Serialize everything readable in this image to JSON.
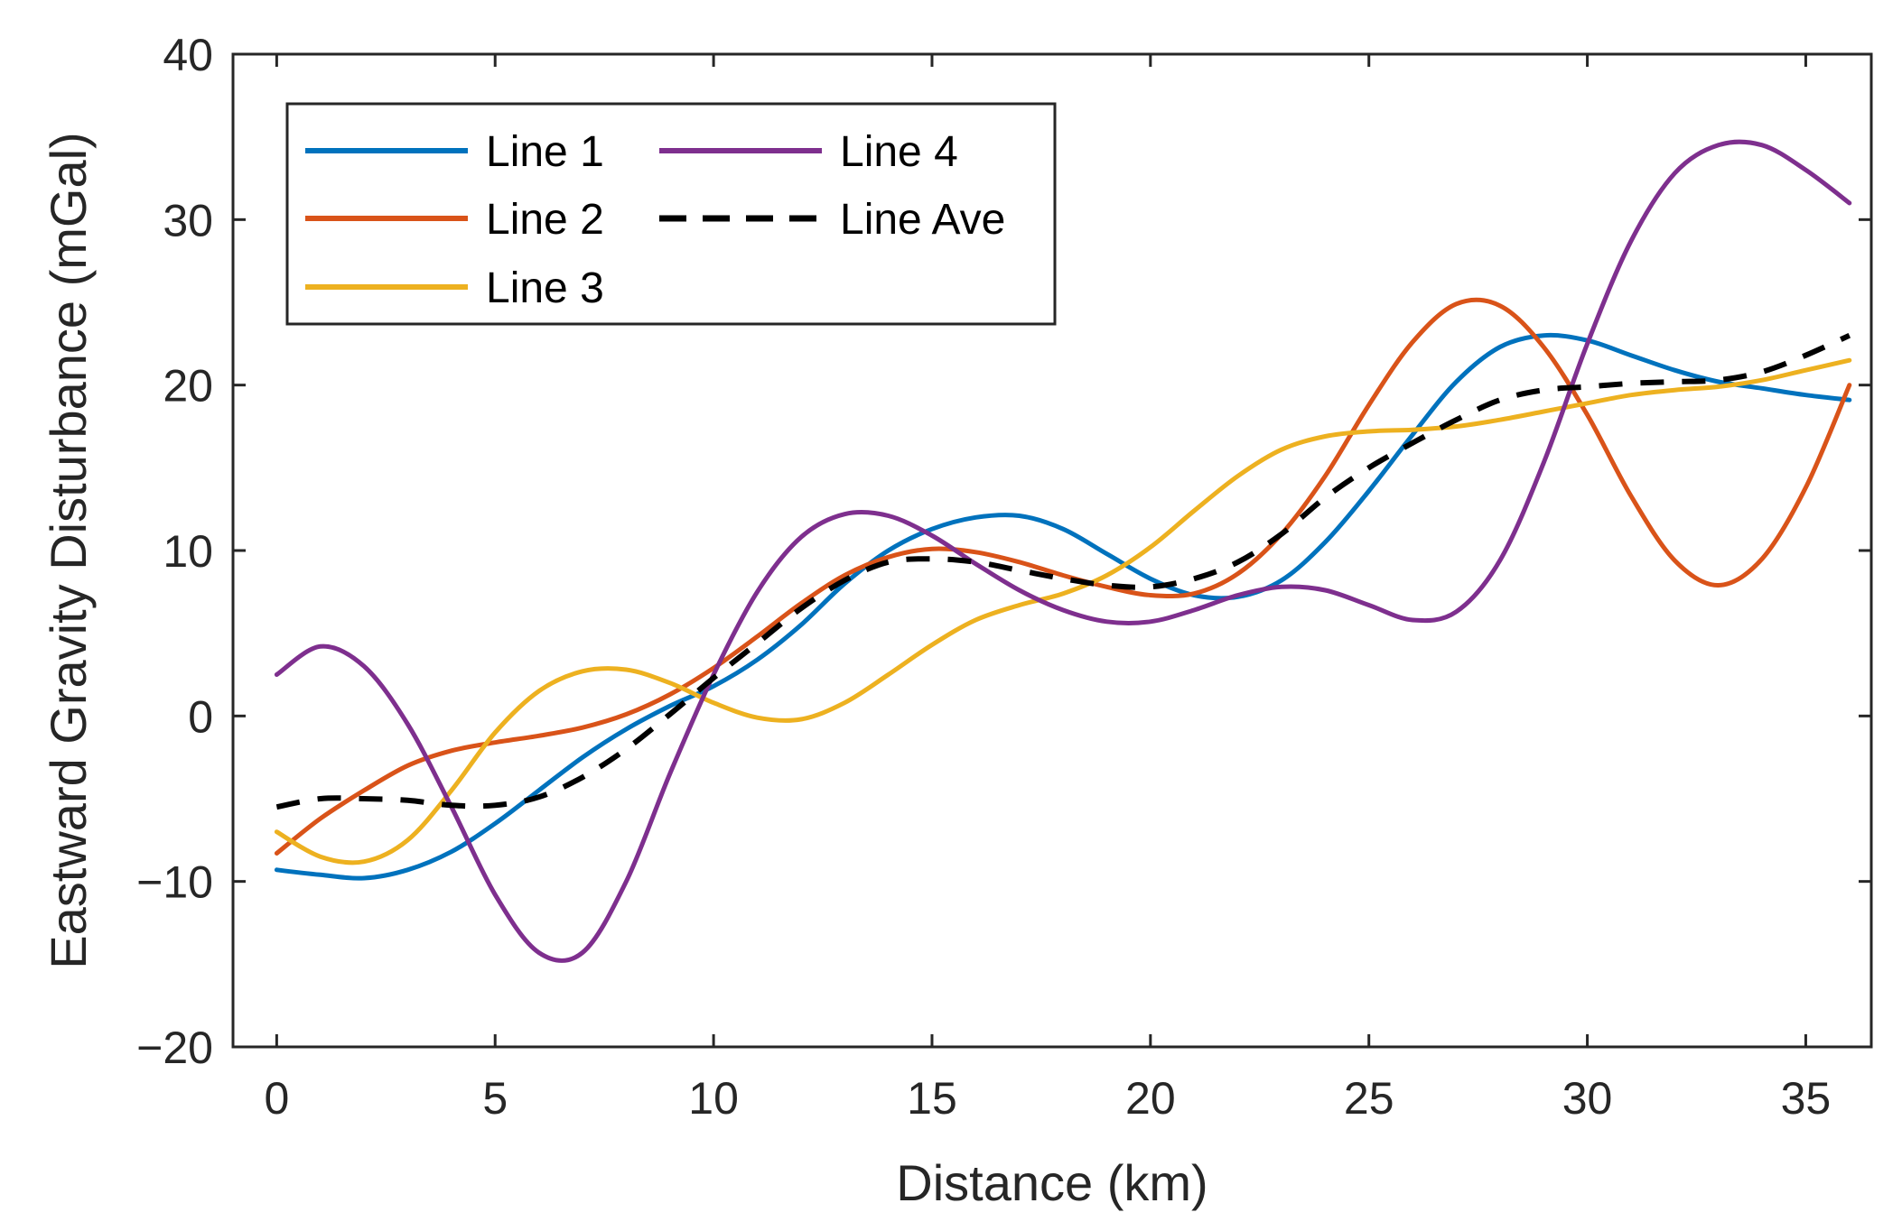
{
  "chart_data": {
    "type": "line",
    "title": "",
    "xlabel": "Distance (km)",
    "ylabel": "Eastward Gravity Disturbance (mGal)",
    "xlim": [
      -1,
      36.5
    ],
    "ylim": [
      -20,
      40
    ],
    "xticks": [
      0,
      5,
      10,
      15,
      20,
      25,
      30,
      35
    ],
    "yticks": [
      -20,
      -10,
      0,
      10,
      20,
      30,
      40
    ],
    "xtick_labels": [
      "0",
      "5",
      "10",
      "15",
      "20",
      "25",
      "30",
      "35"
    ],
    "ytick_labels": [
      "−20",
      "−10",
      "0",
      "10",
      "20",
      "30",
      "40"
    ],
    "grid": false,
    "legend_position": "top-left",
    "series": [
      {
        "name": "Line 1",
        "color": "#0072BD",
        "dash": "solid",
        "x": [
          0,
          1,
          2,
          3,
          4,
          5,
          6,
          7,
          8,
          9,
          10,
          11,
          12,
          13,
          14,
          15,
          16,
          17,
          18,
          19,
          20,
          21,
          22,
          23,
          24,
          25,
          26,
          27,
          28,
          29,
          30,
          31,
          32,
          33,
          34,
          35,
          36
        ],
        "y": [
          -9.3,
          -9.6,
          -9.8,
          -9.3,
          -8.2,
          -6.5,
          -4.5,
          -2.5,
          -0.8,
          0.6,
          1.8,
          3.4,
          5.5,
          8.0,
          10.0,
          11.3,
          12.0,
          12.1,
          11.3,
          9.8,
          8.3,
          7.3,
          7.2,
          8.2,
          10.5,
          13.6,
          17.0,
          20.2,
          22.3,
          23.0,
          22.7,
          21.8,
          20.9,
          20.2,
          19.8,
          19.4,
          19.1
        ]
      },
      {
        "name": "Line 2",
        "color": "#D95319",
        "dash": "solid",
        "x": [
          0,
          1,
          2,
          3,
          4,
          5,
          6,
          7,
          8,
          9,
          10,
          11,
          12,
          13,
          14,
          15,
          16,
          17,
          18,
          19,
          20,
          21,
          22,
          23,
          24,
          25,
          26,
          27,
          28,
          29,
          30,
          31,
          32,
          33,
          34,
          35,
          36
        ],
        "y": [
          -8.3,
          -6.2,
          -4.5,
          -3.0,
          -2.1,
          -1.6,
          -1.2,
          -0.7,
          0.1,
          1.3,
          2.9,
          4.8,
          6.8,
          8.5,
          9.6,
          10.1,
          9.9,
          9.3,
          8.5,
          7.8,
          7.3,
          7.4,
          8.6,
          11.0,
          14.5,
          18.8,
          22.6,
          24.9,
          24.8,
          22.3,
          18.2,
          13.3,
          9.4,
          7.9,
          9.5,
          13.8,
          20.0
        ]
      },
      {
        "name": "Line 3",
        "color": "#EDB120",
        "dash": "solid",
        "x": [
          0,
          1,
          2,
          3,
          4,
          5,
          6,
          7,
          8,
          9,
          10,
          11,
          12,
          13,
          14,
          15,
          16,
          17,
          18,
          19,
          20,
          21,
          22,
          23,
          24,
          25,
          26,
          27,
          28,
          29,
          30,
          31,
          32,
          33,
          34,
          35,
          36
        ],
        "y": [
          -7.0,
          -8.5,
          -8.8,
          -7.5,
          -4.5,
          -1.0,
          1.5,
          2.7,
          2.8,
          2.0,
          0.8,
          -0.1,
          -0.2,
          0.8,
          2.5,
          4.3,
          5.8,
          6.7,
          7.4,
          8.5,
          10.2,
          12.4,
          14.5,
          16.1,
          16.9,
          17.2,
          17.3,
          17.5,
          17.9,
          18.4,
          18.9,
          19.4,
          19.7,
          19.9,
          20.3,
          20.9,
          21.5
        ]
      },
      {
        "name": "Line 4",
        "color": "#7E2F8E",
        "dash": "solid",
        "x": [
          0,
          1,
          2,
          3,
          4,
          5,
          6,
          7,
          8,
          9,
          10,
          11,
          12,
          13,
          14,
          15,
          16,
          17,
          18,
          19,
          20,
          21,
          22,
          23,
          24,
          25,
          26,
          27,
          28,
          29,
          30,
          31,
          32,
          33,
          34,
          35,
          36
        ],
        "y": [
          2.5,
          4.2,
          3.0,
          -0.5,
          -5.5,
          -10.8,
          -14.3,
          -14.3,
          -10.0,
          -3.5,
          2.5,
          7.5,
          10.8,
          12.2,
          12.1,
          10.9,
          9.2,
          7.6,
          6.4,
          5.7,
          5.7,
          6.4,
          7.3,
          7.8,
          7.6,
          6.7,
          5.8,
          6.3,
          9.4,
          15.3,
          22.5,
          28.7,
          32.8,
          34.5,
          34.5,
          33.0,
          31.0
        ]
      },
      {
        "name": "Line Ave",
        "color": "#000000",
        "dash": "dashed",
        "x": [
          0,
          1,
          2,
          3,
          4,
          5,
          6,
          7,
          8,
          9,
          10,
          11,
          12,
          13,
          14,
          15,
          16,
          17,
          18,
          19,
          20,
          21,
          22,
          23,
          24,
          25,
          26,
          27,
          28,
          29,
          30,
          31,
          32,
          33,
          34,
          35,
          36
        ],
        "y": [
          -5.5,
          -5.0,
          -5.0,
          -5.1,
          -5.4,
          -5.4,
          -4.9,
          -3.7,
          -2.0,
          0.1,
          2.3,
          4.4,
          6.5,
          8.2,
          9.3,
          9.5,
          9.3,
          8.8,
          8.3,
          7.9,
          7.8,
          8.3,
          9.3,
          11.0,
          13.2,
          15.0,
          16.5,
          17.9,
          19.1,
          19.7,
          19.9,
          20.1,
          20.2,
          20.3,
          20.8,
          21.8,
          23.0
        ]
      }
    ]
  }
}
